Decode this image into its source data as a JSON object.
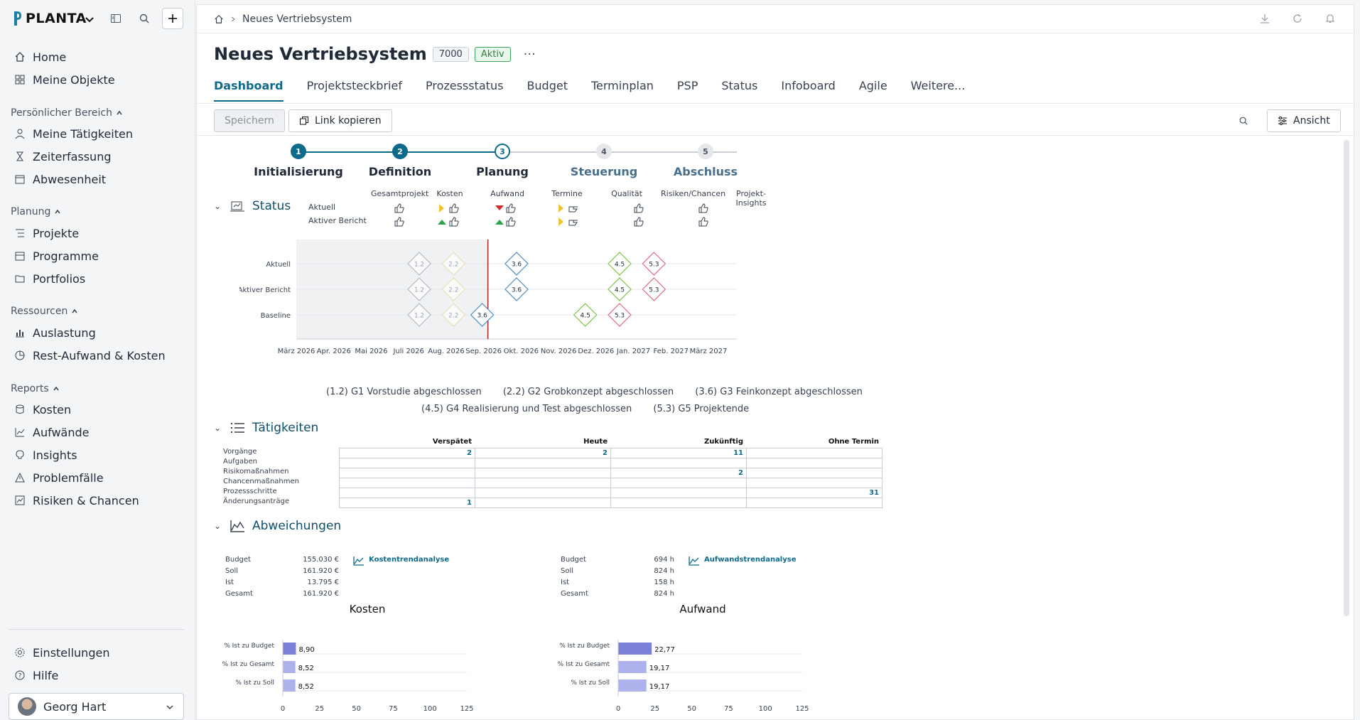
{
  "app": {
    "brand": "PLANTA"
  },
  "sidebar": {
    "top_items": [
      {
        "label": "Home",
        "icon": "home-icon"
      },
      {
        "label": "Meine Objekte",
        "icon": "grid-icon"
      }
    ],
    "sections": [
      {
        "title": "Persönlicher Bereich",
        "items": [
          {
            "label": "Meine Tätigkeiten"
          },
          {
            "label": "Zeiterfassung"
          },
          {
            "label": "Abwesenheit"
          }
        ]
      },
      {
        "title": "Planung",
        "items": [
          {
            "label": "Projekte"
          },
          {
            "label": "Programme"
          },
          {
            "label": "Portfolios"
          }
        ]
      },
      {
        "title": "Ressourcen",
        "items": [
          {
            "label": "Auslastung"
          },
          {
            "label": "Rest-Aufwand & Kosten"
          }
        ]
      },
      {
        "title": "Reports",
        "items": [
          {
            "label": "Kosten"
          },
          {
            "label": "Aufwände"
          },
          {
            "label": "Insights"
          },
          {
            "label": "Problemfälle"
          },
          {
            "label": "Risiken & Chancen"
          }
        ]
      }
    ],
    "bottom_items": [
      {
        "label": "Einstellungen"
      },
      {
        "label": "Hilfe"
      }
    ],
    "user": {
      "name": "Georg Hart"
    }
  },
  "breadcrumb": {
    "current": "Neues Vertriebsystem"
  },
  "project": {
    "title": "Neues Vertriebsystem",
    "number": "7000",
    "status": "Aktiv"
  },
  "tabs": [
    {
      "label": "Dashboard",
      "active": true
    },
    {
      "label": "Projektsteckbrief"
    },
    {
      "label": "Prozessstatus"
    },
    {
      "label": "Budget"
    },
    {
      "label": "Terminplan"
    },
    {
      "label": "PSP"
    },
    {
      "label": "Status"
    },
    {
      "label": "Infoboard"
    },
    {
      "label": "Agile"
    },
    {
      "label": "Weitere..."
    }
  ],
  "toolbar": {
    "save_label": "Speichern",
    "copy_link_label": "Link kopieren",
    "view_label": "Ansicht"
  },
  "phases": [
    {
      "num": "1",
      "label": "Initialisierung",
      "state": "done"
    },
    {
      "num": "2",
      "label": "Definition",
      "state": "done"
    },
    {
      "num": "3",
      "label": "Planung",
      "state": "current"
    },
    {
      "num": "4",
      "label": "Steuerung",
      "state": "future"
    },
    {
      "num": "5",
      "label": "Abschluss",
      "state": "future"
    }
  ],
  "status": {
    "heading": "Status",
    "row_labels": [
      "Aktuell",
      "Aktiver Bericht"
    ],
    "columns": [
      "Gesamtprojekt",
      "Kosten",
      "Aufwand",
      "Termine",
      "Qualität",
      "Risiken/Chancen",
      "Projekt-Insights"
    ]
  },
  "chart_data": {
    "type": "scatter",
    "categories_y": [
      "Aktuell",
      "Aktiver Bericht",
      "Baseline"
    ],
    "x_ticks": [
      "März 2026",
      "Apr. 2026",
      "Mai 2026",
      "Juli 2026",
      "Aug. 2026",
      "Sep. 2026",
      "Okt. 2026",
      "Nov. 2026",
      "Dez. 2026",
      "Jan. 2027",
      "Feb. 2027",
      "März 2027"
    ],
    "today_marker": "Aug. 2026",
    "series": [
      {
        "label": "1.2",
        "points": {
          "Aktuell": "Juni 2026",
          "Aktiver Bericht": "Juni 2026",
          "Baseline": "Juni 2026"
        },
        "color": "#9ca3af",
        "past": true
      },
      {
        "label": "2.2",
        "points": {
          "Aktuell": "Juli 2026",
          "Aktiver Bericht": "Juli 2026",
          "Baseline": "Juli 2026"
        },
        "color": "#e7d89a",
        "past": true
      },
      {
        "label": "3.6",
        "points": {
          "Aktuell": "Sep. 2026",
          "Aktiver Bericht": "Sep. 2026",
          "Baseline": "Aug. 2026"
        },
        "color": "#4a8bc2"
      },
      {
        "label": "4.5",
        "points": {
          "Aktuell": "Dez. 2026",
          "Aktiver Bericht": "Dez. 2026",
          "Baseline": "Nov. 2026"
        },
        "color": "#7fc24a"
      },
      {
        "label": "5.3",
        "points": {
          "Aktuell": "Jan. 2027",
          "Aktiver Bericht": "Jan. 2027",
          "Baseline": "Dez. 2026"
        },
        "color": "#e06a80"
      }
    ],
    "legend": [
      "(1.2) G1 Vorstudie abgeschlossen",
      "(2.2) G2 Grobkonzept abgeschlossen",
      "(3.6) G3 Feinkonzept abgeschlossen",
      "(4.5) G4 Realisierung und Test abgeschlossen",
      "(5.3) G5 Projektende"
    ]
  },
  "activities": {
    "heading": "Tätigkeiten",
    "columns": [
      "Verspätet",
      "Heute",
      "Zukünftig",
      "Ohne Termin"
    ],
    "rows": [
      {
        "label": "Vorgänge",
        "values": [
          "2",
          "2",
          "11",
          ""
        ]
      },
      {
        "label": "Aufgaben",
        "values": [
          "",
          "",
          "",
          ""
        ]
      },
      {
        "label": "Risikomaßnahmen",
        "values": [
          "",
          "",
          "2",
          ""
        ]
      },
      {
        "label": "Chancenmaßnahmen",
        "values": [
          "",
          "",
          "",
          ""
        ]
      },
      {
        "label": "Prozessschritte",
        "values": [
          "",
          "",
          "",
          "31"
        ]
      },
      {
        "label": "Änderungsanträge",
        "values": [
          "1",
          "",
          "",
          ""
        ]
      }
    ]
  },
  "deviations": {
    "heading": "Abweichungen",
    "costs": {
      "title": "Kosten",
      "link": "Kostentrendanalyse",
      "kv": [
        {
          "k": "Budget",
          "v": "155.030 €"
        },
        {
          "k": "Soll",
          "v": "161.920 €"
        },
        {
          "k": "Ist",
          "v": "13.795 €"
        },
        {
          "k": "Gesamt",
          "v": "161.920 €"
        }
      ],
      "bars": [
        {
          "label": "% Ist zu Budget",
          "value": 8.9,
          "display": "8,90"
        },
        {
          "label": "% Ist zu Gesamt",
          "value": 8.52,
          "display": "8,52"
        },
        {
          "label": "% Ist zu Soll",
          "value": 8.52,
          "display": "8,52"
        }
      ],
      "ticks": [
        "0",
        "25",
        "50",
        "75",
        "100",
        "125"
      ]
    },
    "effort": {
      "title": "Aufwand",
      "link": "Aufwandstrendanalyse",
      "kv": [
        {
          "k": "Budget",
          "v": "694 h"
        },
        {
          "k": "Soll",
          "v": "824 h"
        },
        {
          "k": "Ist",
          "v": "158 h"
        },
        {
          "k": "Gesamt",
          "v": "824 h"
        }
      ],
      "bars": [
        {
          "label": "% Ist zu Budget",
          "value": 22.77,
          "display": "22,77"
        },
        {
          "label": "% Ist zu Gesamt",
          "value": 19.17,
          "display": "19,17"
        },
        {
          "label": "% Ist zu Soll",
          "value": 19.17,
          "display": "19,17"
        }
      ],
      "ticks": [
        "0",
        "25",
        "50",
        "75",
        "100",
        "125"
      ]
    }
  }
}
